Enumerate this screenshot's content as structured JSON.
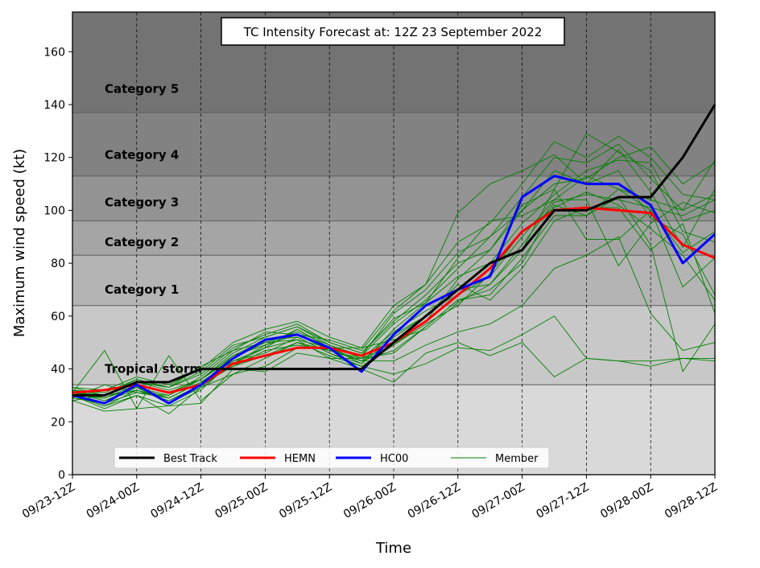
{
  "chart_data": {
    "type": "line",
    "title": "TC Intensity Forecast at: 12Z 23 September 2022",
    "xlabel": "Time",
    "ylabel": "Maximum wind speed (kt)",
    "ylim": [
      0,
      175
    ],
    "yticks": [
      0,
      20,
      40,
      60,
      80,
      100,
      120,
      140,
      160
    ],
    "x_steps": 20,
    "xticks": [
      {
        "step": 0,
        "label": "09/23-12Z"
      },
      {
        "step": 2,
        "label": "09/24-00Z"
      },
      {
        "step": 4,
        "label": "09/24-12Z"
      },
      {
        "step": 6,
        "label": "09/25-00Z"
      },
      {
        "step": 8,
        "label": "09/25-12Z"
      },
      {
        "step": 10,
        "label": "09/26-00Z"
      },
      {
        "step": 12,
        "label": "09/26-12Z"
      },
      {
        "step": 14,
        "label": "09/27-00Z"
      },
      {
        "step": 16,
        "label": "09/27-12Z"
      },
      {
        "step": 18,
        "label": "09/28-00Z"
      },
      {
        "step": 20,
        "label": "09/28-12Z"
      }
    ],
    "grid": "vertical dashed at x ticks",
    "bands": [
      {
        "label": "",
        "from": 0,
        "to": 34,
        "color": "#d9d9d9"
      },
      {
        "label": "Tropical storm",
        "from": 34,
        "to": 64,
        "color": "#c8c8c8",
        "label_y": 40
      },
      {
        "label": "Category 1",
        "from": 64,
        "to": 83,
        "color": "#b4b4b4",
        "label_y": 70
      },
      {
        "label": "Category 2",
        "from": 83,
        "to": 96,
        "color": "#a5a5a5",
        "label_y": 88
      },
      {
        "label": "Category 3",
        "from": 96,
        "to": 113,
        "color": "#939393",
        "label_y": 103
      },
      {
        "label": "Category 4",
        "from": 113,
        "to": 137,
        "color": "#828282",
        "label_y": 121
      },
      {
        "label": "Category 5",
        "from": 137,
        "to": 175,
        "color": "#737373",
        "label_y": 146
      }
    ],
    "series": [
      {
        "name": "Best Track",
        "color": "#000000",
        "width": 3,
        "values": [
          30,
          30,
          35,
          35,
          40,
          40,
          40,
          40,
          40,
          40,
          50,
          60,
          70,
          80,
          85,
          100,
          100,
          105,
          105,
          120,
          140
        ]
      },
      {
        "name": "HEMN",
        "color": "#ff0000",
        "width": 3,
        "values": [
          31,
          32,
          34,
          31,
          34,
          42,
          45,
          48,
          48,
          45,
          50,
          58,
          68,
          78,
          92,
          100,
          101,
          100,
          99,
          87,
          82
        ]
      },
      {
        "name": "HC00",
        "color": "#0000ff",
        "width": 3,
        "values": [
          30,
          27,
          34,
          27,
          34,
          44,
          51,
          53,
          48,
          39,
          53,
          64,
          70,
          75,
          105,
          113,
          110,
          110,
          102,
          80,
          91
        ]
      }
    ],
    "members": {
      "name": "Member",
      "color": "#008000",
      "width": 0.9,
      "lines": [
        [
          28,
          24,
          25,
          26,
          27,
          40,
          39,
          46,
          44,
          40,
          35,
          46,
          50,
          45,
          50,
          37,
          44,
          43,
          43,
          44,
          43
        ],
        [
          32,
          29,
          33,
          27,
          33,
          38,
          44,
          50,
          45,
          41,
          38,
          42,
          48,
          47,
          53,
          60,
          44,
          43,
          41,
          44,
          44
        ],
        [
          30,
          25,
          30,
          23,
          33,
          42,
          49,
          53,
          47,
          43,
          43,
          49,
          54,
          57,
          64,
          78,
          83,
          90,
          61,
          47,
          50
        ],
        [
          29,
          34,
          31,
          30,
          37,
          47,
          50,
          51,
          44,
          44,
          46,
          56,
          66,
          70,
          80,
          102,
          98,
          108,
          100,
          71,
          82
        ],
        [
          31,
          28,
          33,
          29,
          35,
          43,
          48,
          55,
          48,
          42,
          52,
          60,
          70,
          72,
          85,
          108,
          89,
          89,
          100,
          84,
          92
        ],
        [
          33,
          30,
          35,
          32,
          36,
          46,
          52,
          56,
          49,
          44,
          54,
          62,
          68,
          75,
          90,
          104,
          104,
          79,
          95,
          103,
          99
        ],
        [
          30,
          26,
          32,
          28,
          34,
          45,
          51,
          52,
          46,
          42,
          55,
          65,
          75,
          80,
          95,
          106,
          115,
          119,
          118,
          96,
          100
        ],
        [
          32,
          31,
          36,
          33,
          38,
          48,
          53,
          57,
          50,
          46,
          58,
          68,
          80,
          85,
          100,
          110,
          112,
          120,
          124,
          110,
          118
        ],
        [
          31,
          29,
          34,
          31,
          36,
          44,
          50,
          54,
          49,
          45,
          61,
          70,
          84,
          90,
          105,
          120,
          118,
          125,
          112,
          100,
          106
        ],
        [
          33,
          32,
          37,
          34,
          40,
          50,
          55,
          58,
          52,
          48,
          64,
          72,
          88,
          95,
          110,
          126,
          120,
          128,
          120,
          106,
          104
        ],
        [
          29,
          27,
          31,
          29,
          35,
          41,
          47,
          49,
          47,
          44,
          49,
          58,
          74,
          85,
          102,
          108,
          129,
          122,
          115,
          92,
          88
        ],
        [
          31,
          30,
          35,
          33,
          41,
          47,
          54,
          53,
          51,
          47,
          62,
          72,
          99,
          110,
          115,
          121,
          110,
          115,
          97,
          91,
          68
        ],
        [
          30,
          29,
          33,
          30,
          36,
          45,
          49,
          55,
          48,
          45,
          57,
          66,
          78,
          90,
          100,
          115,
          110,
          123,
          107,
          86,
          108
        ],
        [
          32,
          30,
          36,
          33,
          39,
          49,
          52,
          56,
          50,
          46,
          59,
          65,
          82,
          96,
          98,
          104,
          113,
          108,
          104,
          100,
          119
        ],
        [
          30,
          26,
          30,
          26,
          32,
          43,
          46,
          52,
          46,
          41,
          49,
          57,
          64,
          76,
          92,
          101,
          107,
          102,
          93,
          83,
          66
        ],
        [
          31,
          28,
          32,
          28,
          34,
          41,
          45,
          50,
          47,
          43,
          53,
          60,
          72,
          66,
          78,
          96,
          101,
          101,
          85,
          95,
          61
        ],
        [
          28,
          30,
          32,
          29,
          35,
          42,
          48,
          51,
          48,
          43,
          47,
          56,
          66,
          68,
          82,
          98,
          98,
          105,
          87,
          39,
          57
        ],
        [
          31,
          47,
          25,
          45,
          28,
          38,
          41,
          48,
          48,
          48,
          51,
          55,
          65,
          72,
          87,
          103,
          106,
          104,
          101,
          98,
          104
        ]
      ]
    },
    "legend": {
      "position": "lower-left",
      "entries": [
        "Best Track",
        "HEMN",
        "HC00",
        "Member"
      ]
    }
  }
}
